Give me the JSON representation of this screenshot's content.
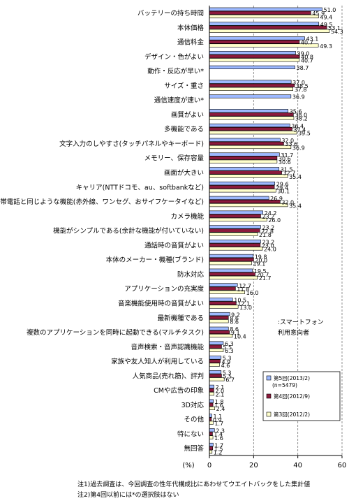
{
  "chart_data": {
    "type": "bar",
    "orientation": "horizontal",
    "categories": [
      "バッテリーの持ち時間",
      "本体価格",
      "通信料金",
      "デザイン・色がよい",
      "動作・反応が早い*",
      "サイズ・重さ",
      "通信速度が速い*",
      "画質がよい",
      "多機能である",
      "文字入力のしやすさ(タッチパネルやキーボード)",
      "メモリー、保存容量",
      "画面が大きい",
      "キャリア(NTTドコモ、au、softbankなど)",
      "携帯電話と同じような機能(赤外線、ワンセグ、おサイフケータイなど)",
      "カメラ機能",
      "機能がシンプルである(余計な機能が付いていない)",
      "通話時の音質がよい",
      "本体のメーカー・機種(ブランド)",
      "防水対応",
      "アプリケーションの充実度",
      "音楽機能使用時の音質がよい",
      "最新機種である",
      "複数のアプリケーションを同時に起動できる(マルチタスク)",
      "音声検索・音声認識機能",
      "家族や友人知人が利用している",
      "人気商品(売れ筋)、評判",
      "CMや広告の印象",
      "3D対応",
      "その他",
      "特にない",
      "無回答"
    ],
    "series": [
      {
        "name": "第5回(2013/2)",
        "sub": "(n=5479)",
        "color": "#9db9ff",
        "values": [
          51.0,
          49.5,
          43.1,
          39.0,
          38.7,
          37.0,
          36.9,
          35.6,
          36.4,
          32.0,
          31.7,
          31.5,
          29.6,
          26.9,
          24.2,
          23.2,
          23.2,
          19.8,
          19.5,
          12.7,
          10.5,
          9.2,
          8.6,
          6.3,
          5.3,
          5.3,
          2.1,
          1.8,
          1.1,
          2.3,
          1.7
        ]
      },
      {
        "name": "第4回(2012/9)",
        "color": "#8b1a3c",
        "values": [
          45.9,
          53.1,
          40.7,
          40.8,
          null,
          38.5,
          null,
          38.0,
          37.4,
          33.6,
          30.6,
          32.7,
          29.4,
          32.0,
          23.2,
          22.8,
          23.0,
          20.0,
          20.7,
          11.8,
          12.1,
          8.6,
          9.1,
          5.5,
          4.9,
          5.5,
          2.0,
          1.6,
          0.9,
          1.4,
          1.5
        ]
      },
      {
        "name": "第3回(2012/2)",
        "color": "#ffffcc",
        "values": [
          49.4,
          54.3,
          49.3,
          40.7,
          null,
          37.8,
          null,
          38.2,
          39.5,
          36.9,
          30.6,
          35.4,
          30.1,
          35.4,
          26.0,
          21.8,
          24.0,
          19.1,
          21.7,
          16.0,
          13.0,
          8.6,
          10.4,
          6.3,
          4.6,
          6.7,
          2.1,
          2.4,
          1.7,
          1.6,
          1.2
        ]
      }
    ],
    "xlim": [
      0,
      60
    ],
    "xticks": [
      0,
      20,
      40,
      60
    ],
    "xlabel": "(%)",
    "grid": "dashed vertical",
    "legend_position": "bottom-right"
  },
  "annotation": ":スマートフォン\n利用意向者",
  "footnotes": [
    "注1)過去調査は、今回調査の性年代構成比にあわせてウエイトバックをした集計値",
    "注2)第4回以前には*の選択肢はない"
  ]
}
